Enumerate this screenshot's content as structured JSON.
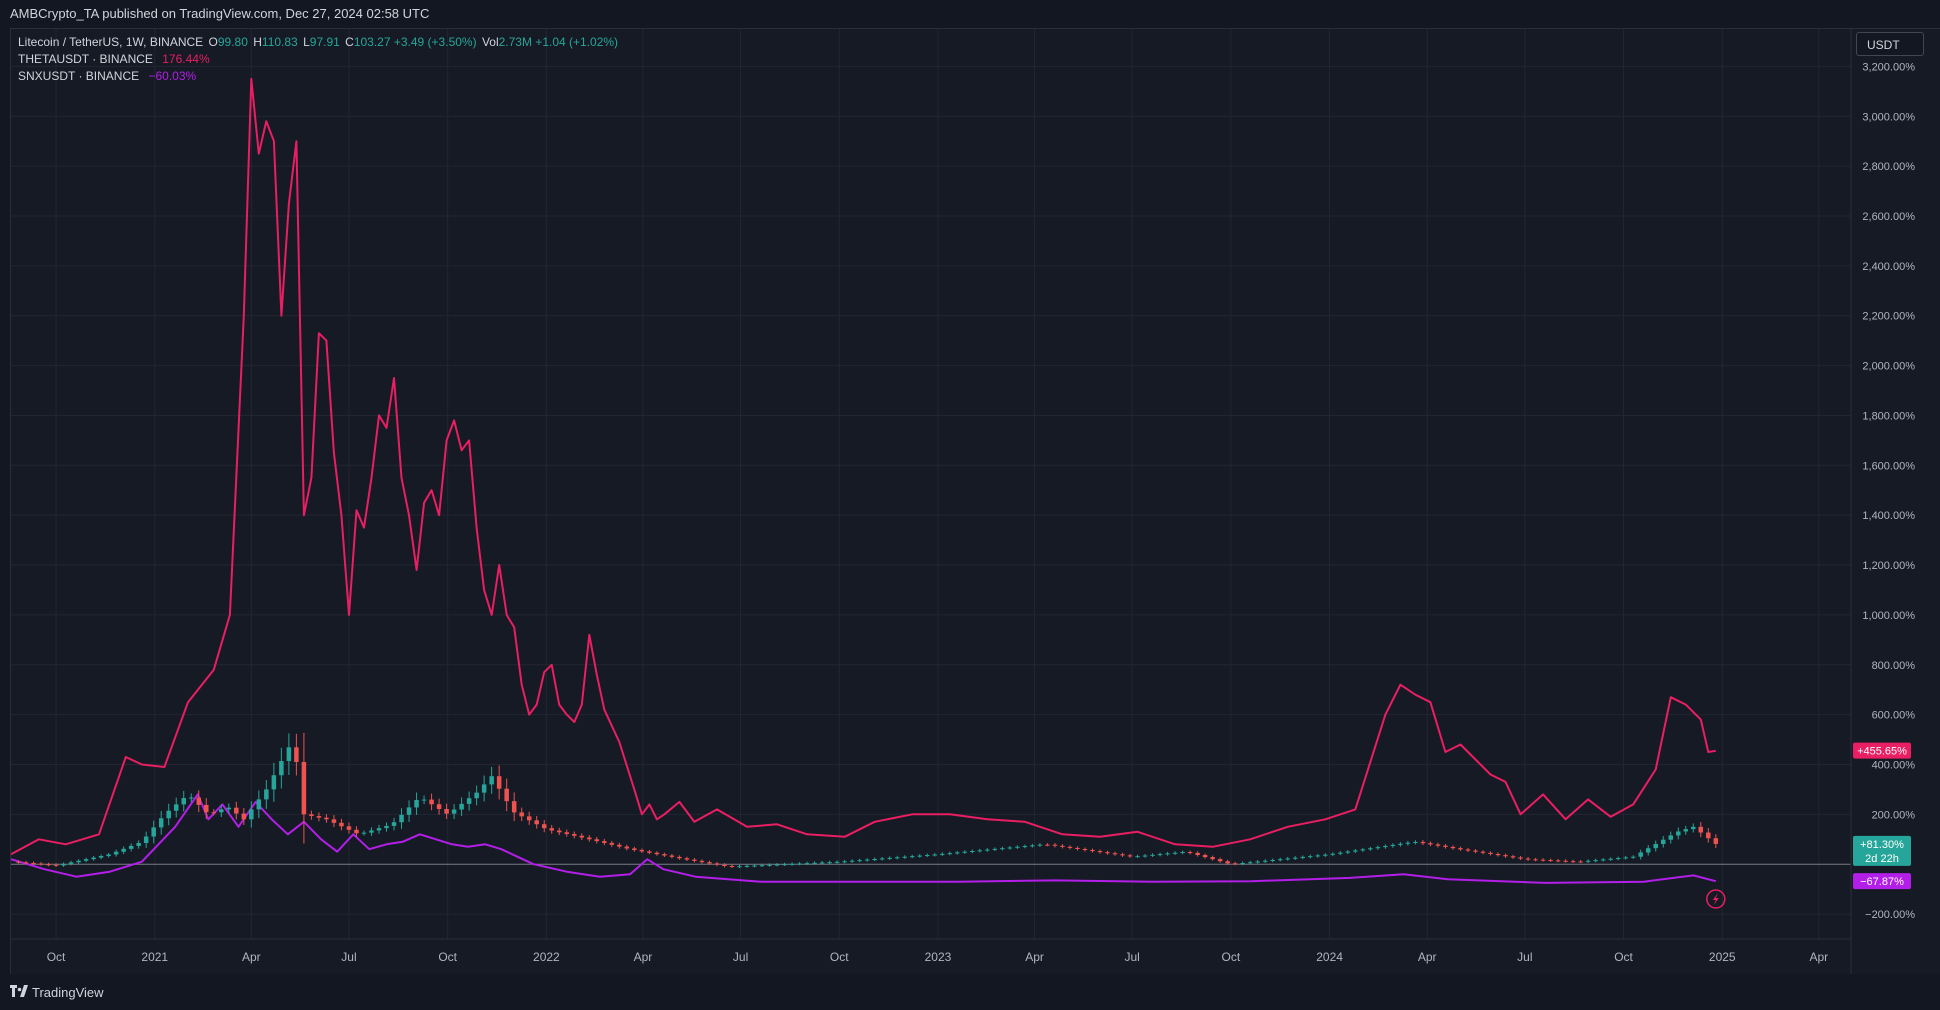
{
  "header": {
    "published_text": "AMBCrypto_TA published on TradingView.com, Dec 27, 2024 02:58 UTC"
  },
  "legend": {
    "symbol": "Litecoin / TetherUS, 1W, BINANCE",
    "open_label": "O",
    "open_value": "99.80",
    "high_label": "H",
    "high_value": "110.83",
    "low_label": "L",
    "low_value": "97.91",
    "close_label": "C",
    "close_value": "103.27",
    "change_value": "+3.49 (+3.50%)",
    "vol_label": "Vol",
    "vol_value": "2.73M",
    "vol_change": "+1.04 (+1.02%)",
    "theta_name": "THETAUSDT · BINANCE",
    "theta_value": "176.44%",
    "snx_name": "SNXUSDT · BINANCE",
    "snx_value": "−60.03%"
  },
  "currency_button": "USDT",
  "footer": {
    "brand": "TradingView"
  },
  "colors": {
    "background": "#161a25",
    "grid": "#232632",
    "up": "#26a69a",
    "down": "#ef5350",
    "theta": "#e91e63",
    "snx": "#b31fe8",
    "ltc_tag": "#26a69a"
  },
  "icons": {
    "replay": "lightning-icon"
  },
  "chart_data": {
    "type": "line",
    "title": "",
    "y_unit": "%",
    "ylim": [
      -300,
      3350
    ],
    "y_ticks": [
      -200,
      200,
      400,
      600,
      800,
      1000,
      1200,
      1400,
      1600,
      1800,
      2000,
      2200,
      2400,
      2600,
      2800,
      3000,
      3200
    ],
    "y_tick_labels": [
      "−200.00%",
      "200.00%",
      "400.00%",
      "600.00%",
      "800.00%",
      "1,000.00%",
      "1,200.00%",
      "1,400.00%",
      "1,600.00%",
      "1,800.00%",
      "2,000.00%",
      "2,200.00%",
      "2,400.00%",
      "2,600.00%",
      "2,800.00%",
      "3,000.00%",
      "3,200.00%"
    ],
    "xlim": [
      "2020-08-20",
      "2025-05-01"
    ],
    "x_ticks": [
      "2020-10-01",
      "2021-01-01",
      "2021-04-01",
      "2021-07-01",
      "2021-10-01",
      "2022-01-01",
      "2022-04-01",
      "2022-07-01",
      "2022-10-01",
      "2023-01-01",
      "2023-04-01",
      "2023-07-01",
      "2023-10-01",
      "2024-01-01",
      "2024-04-01",
      "2024-07-01",
      "2024-10-01",
      "2025-01-01",
      "2025-04-01"
    ],
    "x_tick_labels": [
      "Oct",
      "2021",
      "Apr",
      "Jul",
      "Oct",
      "2022",
      "Apr",
      "Jul",
      "Oct",
      "2023",
      "Apr",
      "Jul",
      "Oct",
      "2024",
      "Apr",
      "Jul",
      "Oct",
      "2025",
      "Apr"
    ],
    "series": [
      {
        "name": "THETAUSDT · BINANCE",
        "x": [
          "2020-08-20",
          "2020-09-15",
          "2020-10-10",
          "2020-11-10",
          "2020-12-05",
          "2020-12-20",
          "2021-01-10",
          "2021-02-01",
          "2021-02-25",
          "2021-03-12",
          "2021-03-25",
          "2021-04-01",
          "2021-04-08",
          "2021-04-15",
          "2021-04-22",
          "2021-04-29",
          "2021-05-06",
          "2021-05-13",
          "2021-05-20",
          "2021-05-27",
          "2021-06-03",
          "2021-06-10",
          "2021-06-17",
          "2021-06-24",
          "2021-07-01",
          "2021-07-08",
          "2021-07-15",
          "2021-07-22",
          "2021-07-29",
          "2021-08-05",
          "2021-08-12",
          "2021-08-19",
          "2021-08-26",
          "2021-09-02",
          "2021-09-09",
          "2021-09-16",
          "2021-09-23",
          "2021-09-30",
          "2021-10-07",
          "2021-10-14",
          "2021-10-21",
          "2021-10-28",
          "2021-11-04",
          "2021-11-11",
          "2021-11-18",
          "2021-11-25",
          "2021-12-02",
          "2021-12-09",
          "2021-12-16",
          "2021-12-23",
          "2021-12-30",
          "2022-01-06",
          "2022-01-13",
          "2022-01-20",
          "2022-01-27",
          "2022-02-03",
          "2022-02-10",
          "2022-02-17",
          "2022-02-24",
          "2022-03-10",
          "2022-03-24",
          "2022-03-31",
          "2022-04-07",
          "2022-04-14",
          "2022-04-21",
          "2022-05-05",
          "2022-05-19",
          "2022-06-09",
          "2022-07-07",
          "2022-08-04",
          "2022-09-01",
          "2022-10-06",
          "2022-11-03",
          "2022-12-08",
          "2023-01-12",
          "2023-02-16",
          "2023-03-23",
          "2023-04-27",
          "2023-06-01",
          "2023-07-06",
          "2023-08-10",
          "2023-09-14",
          "2023-10-19",
          "2023-11-23",
          "2023-12-28",
          "2024-01-25",
          "2024-02-22",
          "2024-03-07",
          "2024-03-21",
          "2024-04-04",
          "2024-04-18",
          "2024-05-02",
          "2024-05-16",
          "2024-05-30",
          "2024-06-13",
          "2024-06-27",
          "2024-07-18",
          "2024-08-08",
          "2024-08-29",
          "2024-09-19",
          "2024-10-10",
          "2024-10-31",
          "2024-11-14",
          "2024-11-28",
          "2024-12-12",
          "2024-12-19",
          "2024-12-26"
        ],
        "y": [
          40,
          100,
          80,
          120,
          430,
          400,
          390,
          650,
          780,
          1000,
          2200,
          3150,
          2850,
          2980,
          2900,
          2200,
          2650,
          2900,
          1400,
          1550,
          2130,
          2100,
          1650,
          1400,
          1000,
          1420,
          1350,
          1550,
          1800,
          1750,
          1950,
          1550,
          1400,
          1180,
          1450,
          1500,
          1400,
          1700,
          1780,
          1660,
          1700,
          1350,
          1100,
          1000,
          1200,
          1000,
          950,
          720,
          600,
          640,
          770,
          800,
          640,
          600,
          570,
          640,
          920,
          760,
          620,
          490,
          300,
          200,
          240,
          180,
          200,
          250,
          170,
          220,
          150,
          160,
          120,
          110,
          170,
          200,
          200,
          180,
          170,
          120,
          110,
          130,
          80,
          70,
          100,
          150,
          180,
          220,
          600,
          720,
          680,
          650,
          450,
          480,
          420,
          360,
          330,
          200,
          280,
          180,
          260,
          190,
          240,
          380,
          670,
          640,
          580,
          450,
          455
        ]
      },
      {
        "name": "SNXUSDT · BINANCE",
        "x": [
          "2020-08-20",
          "2020-09-20",
          "2020-10-20",
          "2020-11-20",
          "2020-12-20",
          "2021-01-20",
          "2021-02-10",
          "2021-02-20",
          "2021-03-05",
          "2021-03-20",
          "2021-04-05",
          "2021-04-20",
          "2021-05-05",
          "2021-05-20",
          "2021-06-05",
          "2021-06-20",
          "2021-07-05",
          "2021-07-20",
          "2021-08-05",
          "2021-08-20",
          "2021-09-05",
          "2021-09-20",
          "2021-10-05",
          "2021-10-20",
          "2021-11-05",
          "2021-11-20",
          "2021-12-05",
          "2021-12-20",
          "2022-01-20",
          "2022-02-20",
          "2022-03-20",
          "2022-04-05",
          "2022-04-20",
          "2022-05-20",
          "2022-07-20",
          "2022-10-20",
          "2023-01-20",
          "2023-04-20",
          "2023-07-20",
          "2023-10-20",
          "2024-01-20",
          "2024-03-10",
          "2024-04-20",
          "2024-07-20",
          "2024-10-20",
          "2024-12-05",
          "2024-12-26"
        ],
        "y": [
          20,
          -20,
          -50,
          -30,
          10,
          150,
          280,
          180,
          240,
          150,
          250,
          180,
          120,
          170,
          100,
          50,
          120,
          60,
          80,
          90,
          120,
          100,
          80,
          70,
          80,
          60,
          30,
          0,
          -30,
          -50,
          -40,
          20,
          -20,
          -50,
          -70,
          -70,
          -70,
          -65,
          -70,
          -68,
          -55,
          -40,
          -60,
          -75,
          -70,
          -45,
          -68
        ]
      },
      {
        "name": "Litecoin / TetherUS, 1W, BINANCE",
        "x": [
          "2020-08-20",
          "2020-10-01",
          "2020-11-20",
          "2020-12-20",
          "2021-01-10",
          "2021-02-01",
          "2021-02-20",
          "2021-03-10",
          "2021-03-25",
          "2021-04-15",
          "2021-05-01",
          "2021-05-10",
          "2021-05-20",
          "2021-06-10",
          "2021-07-10",
          "2021-08-10",
          "2021-09-05",
          "2021-10-01",
          "2021-11-01",
          "2021-11-10",
          "2021-12-01",
          "2022-01-01",
          "2022-02-10",
          "2022-03-20",
          "2022-05-10",
          "2022-06-20",
          "2022-10-01",
          "2023-01-01",
          "2023-04-10",
          "2023-07-01",
          "2023-08-20",
          "2023-10-01",
          "2024-01-01",
          "2024-03-20",
          "2024-05-01",
          "2024-07-01",
          "2024-08-20",
          "2024-10-10",
          "2024-11-20",
          "2024-12-05",
          "2024-12-26"
        ],
        "y": [
          10,
          -5,
          40,
          90,
          200,
          280,
          200,
          230,
          180,
          300,
          430,
          500,
          200,
          180,
          120,
          160,
          270,
          200,
          300,
          360,
          210,
          140,
          100,
          60,
          20,
          -10,
          10,
          40,
          80,
          30,
          50,
          0,
          40,
          90,
          60,
          20,
          10,
          30,
          130,
          150,
          81.3
        ]
      }
    ],
    "last_value_tags": [
      {
        "series": "THETAUSDT · BINANCE",
        "value": 455.65,
        "label": "+455.65%"
      },
      {
        "series": "Litecoin / TetherUS, 1W, BINANCE",
        "value": 81.3,
        "label": "+81.30%",
        "sublabel": "2d 22h"
      },
      {
        "series": "SNXUSDT · BINANCE",
        "value": -67.87,
        "label": "−67.87%"
      }
    ],
    "zero_line": 0,
    "grid": true
  }
}
